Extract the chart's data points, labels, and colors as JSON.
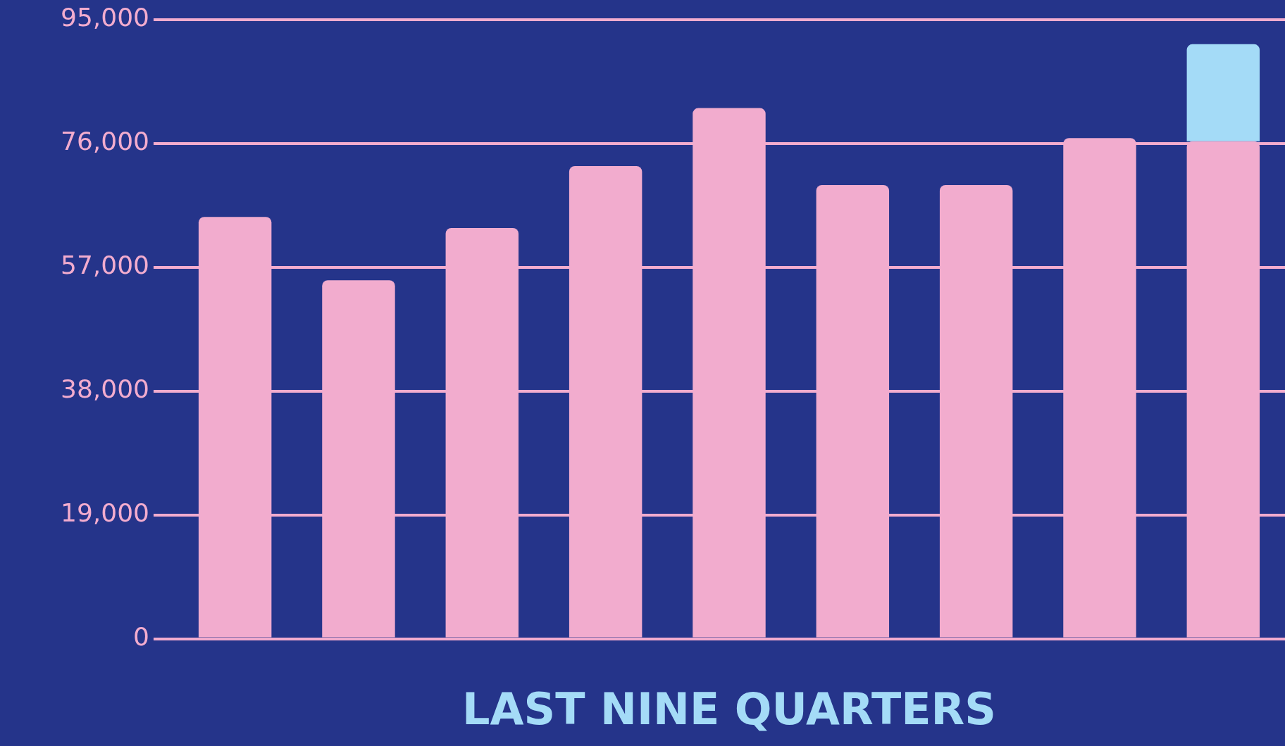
{
  "chart_data": {
    "type": "bar",
    "xlabel": "LAST NINE QUARTERS",
    "categories": [
      null,
      null,
      null,
      null,
      null,
      null,
      null,
      null,
      null
    ],
    "series": [
      {
        "color": "#f2acce",
        "values": [
          64700,
          55000,
          63000,
          72500,
          81400,
          69600,
          69600,
          76800,
          76300
        ]
      },
      {
        "color": "#a4dbf7",
        "values": [
          null,
          null,
          null,
          null,
          null,
          null,
          null,
          null,
          14900
        ]
      }
    ],
    "stacked": true,
    "ylim": [
      0,
      95000
    ],
    "yticks": [
      0,
      {
        "value": 19000,
        "label": "19,000"
      },
      {
        "value": 38000,
        "label": "38,000"
      },
      {
        "value": 57000,
        "label": "57,000"
      },
      {
        "value": 76000,
        "label": "76,000"
      },
      {
        "value": 95000,
        "label": "95,000"
      }
    ],
    "grid": "y",
    "tick_labels": "y"
  }
}
